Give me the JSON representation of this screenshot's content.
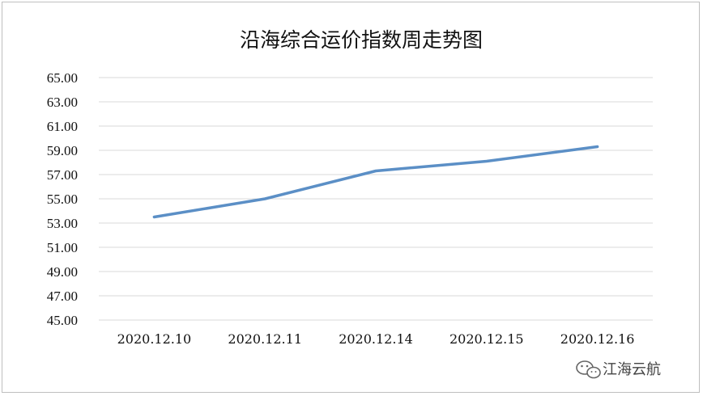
{
  "chart_data": {
    "type": "line",
    "title": "沿海综合运价指数周走势图",
    "xlabel": "",
    "ylabel": "",
    "categories": [
      "2020.12.10",
      "2020.12.11",
      "2020.12.14",
      "2020.12.15",
      "2020.12.16"
    ],
    "series": [
      {
        "values": [
          53.5,
          55.0,
          57.3,
          58.1,
          59.3
        ]
      }
    ],
    "ylim": [
      45,
      65
    ],
    "yticks": [
      "45.00",
      "47.00",
      "49.00",
      "51.00",
      "53.00",
      "55.00",
      "57.00",
      "59.00",
      "61.00",
      "63.00",
      "65.00"
    ],
    "grid": true,
    "line_color": "#5b8fc6",
    "grid_color": "#d9d9d9"
  },
  "watermark": {
    "text": "江海云航",
    "icon": "wechat-icon"
  }
}
